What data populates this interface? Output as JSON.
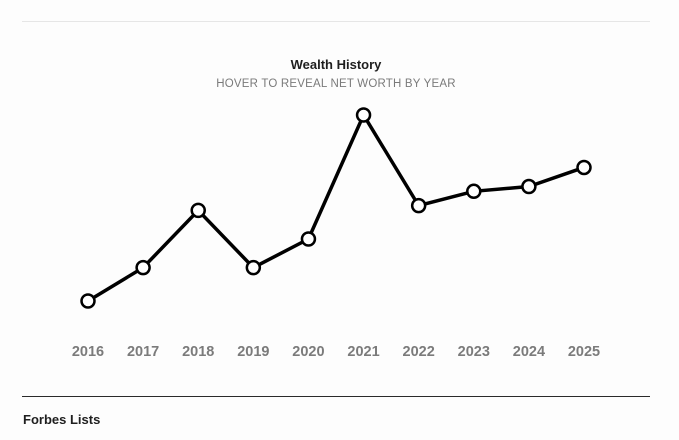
{
  "chart_data": {
    "type": "line",
    "title": "Wealth History",
    "subtitle": "HOVER TO REVEAL NET WORTH BY YEAR",
    "x": [
      "2016",
      "2017",
      "2018",
      "2019",
      "2020",
      "2021",
      "2022",
      "2023",
      "2024",
      "2025"
    ],
    "values": [
      18,
      25,
      37,
      25,
      31,
      57,
      38,
      41,
      42,
      46
    ],
    "ylim": [
      10,
      60
    ],
    "grid": false,
    "legend": "none",
    "line_color": "#000000",
    "marker_fill": "#ffffff",
    "tick_color": "#7b7b7b"
  },
  "footer": {
    "section_title": "Forbes Lists"
  }
}
